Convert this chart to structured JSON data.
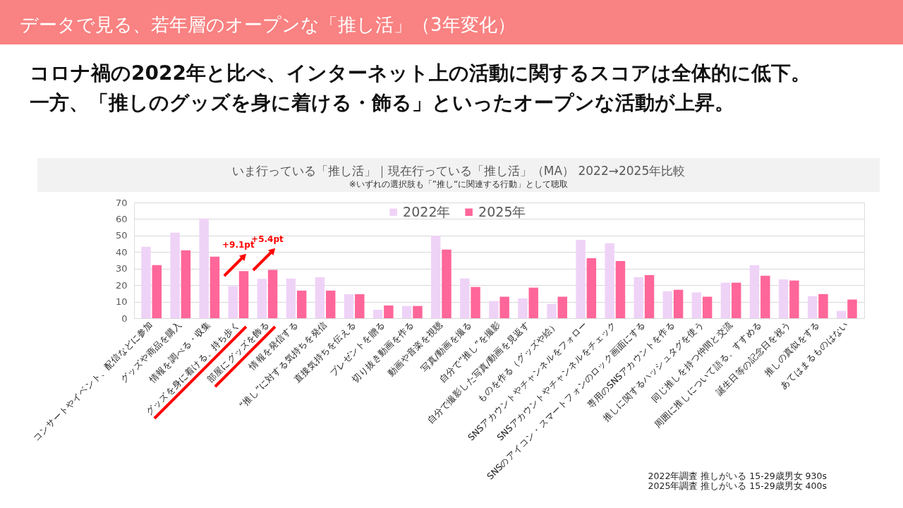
{
  "chart_data": {
    "type": "bar",
    "title": "データで見る、若年層のオープンな「推し活」（3年変化）",
    "subtitle": "コロナ禍の2022年と比べ、インターネット上の活動に関するスコアは全体的に低下。一方、「推しのグッズを身に着ける・飾る」といったオープンな活動が上昇。",
    "categories": [
      "コンサートやイベント、配信などに参加",
      "グッズや商品を購入",
      "情報を調べる・収集",
      "グッズを身に着ける、持ち歩く",
      "部屋にグッズを飾る",
      "情報を発信する",
      "“推し”に対する気持ちを発信",
      "直接気持ちを伝える",
      "プレゼントを贈る",
      "切り抜き動画を作る",
      "動画や音楽を視聴",
      "写真/動画を撮る",
      "自分で“推し”を撮影",
      "自分で撮影した写真/動画を見返す",
      "ものを作る（グッズや絵）",
      "SNSアカウントやチャンネルをフォロー",
      "SNSアカウントやチャンネルをチェック",
      "SNSのアイコン・スマートフォンのロック画面にする",
      "専用のSNSアカウントを作る",
      "推しに関するハッシュタグを使う",
      "同じ推しを持つ仲間と交流",
      "周囲に推しについて語る、すすめる",
      "誕生日等の記念日を祝う",
      "推しの真似をする",
      "あてはまるものはない"
    ],
    "series": [
      {
        "name": "2022年",
        "color": "#efd3f7",
        "values": [
          43.2,
          51.8,
          60.3,
          19.4,
          23.8,
          24.0,
          24.8,
          14.5,
          5.1,
          7.4,
          49.8,
          24.1,
          10.4,
          12.0,
          8.7,
          47.4,
          45.4,
          24.8,
          16.3,
          15.6,
          21.5,
          32.0,
          23.5,
          13.3,
          4.4
        ]
      },
      {
        "name": "2025年",
        "color": "#ff6699",
        "values": [
          32.1,
          41.1,
          37.2,
          28.5,
          29.2,
          16.7,
          16.7,
          14.5,
          7.7,
          7.4,
          41.5,
          18.9,
          13.0,
          18.5,
          13.0,
          36.3,
          34.6,
          26.1,
          17.2,
          13.0,
          21.5,
          25.7,
          22.8,
          14.6,
          11.3
        ]
      }
    ],
    "ylim": [
      0,
      70
    ],
    "yticks": [
      0,
      10,
      20,
      30,
      40,
      50,
      60,
      70
    ],
    "grid": "y",
    "legend": "top",
    "annotations": [
      "いま行っている「推し活」｜現在行っている「推し活」（MA） 2022→2025年比較",
      "※いずれの選択肢も「”推し“に関連する行動」として聴取",
      "2022年調査 推しがいる 15-29歳男女 930s",
      "2025年調査 推しがいる 15-29歳男女 400s",
      "+9.1pt",
      "+5.4pt"
    ]
  }
}
